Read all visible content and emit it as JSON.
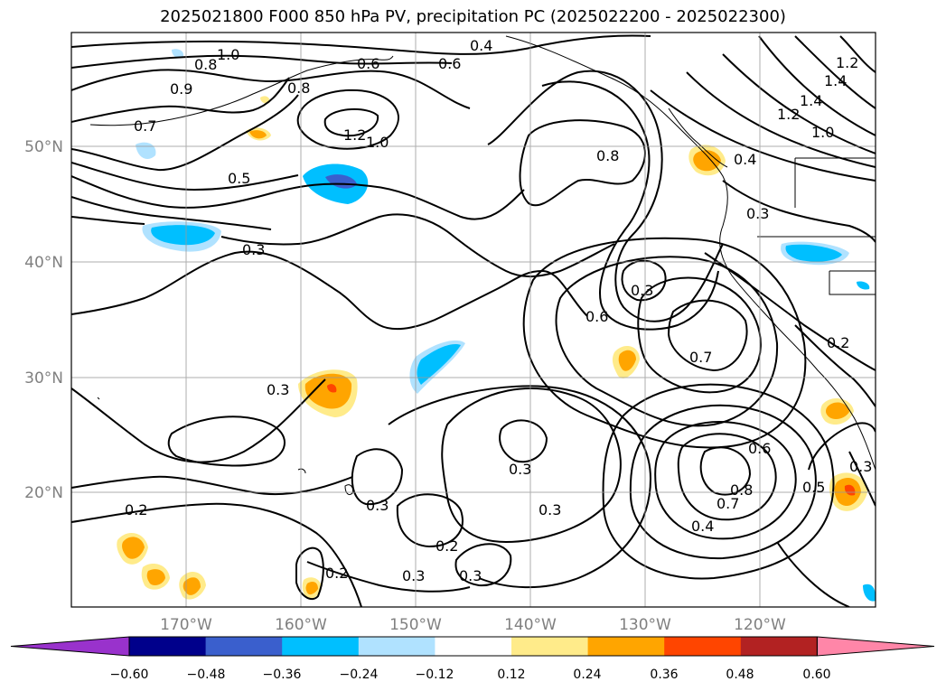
{
  "title": "2025021800 F000 850 hPa PV, precipitation PC (2025022200 - 2025022300)",
  "map": {
    "lon_labels": [
      "170°W",
      "160°W",
      "150°W",
      "140°W",
      "130°W",
      "120°W"
    ],
    "lat_labels": [
      "50°N",
      "40°N",
      "30°N",
      "20°N"
    ],
    "contour_labels": [
      "1.0",
      "0.8",
      "0.4",
      "0.6",
      "0.6",
      "0.8",
      "0.9",
      "0.7",
      "1.2",
      "1.0",
      "0.8",
      "0.5",
      "0.4",
      "1.4",
      "1.2",
      "1.0",
      "1.4",
      "1.2",
      "0.3",
      "0.3",
      "0.6",
      "0.7",
      "0.3",
      "0.3",
      "0.6",
      "0.8",
      "0.7",
      "0.4",
      "0.5",
      "0.2",
      "0.3",
      "0.2",
      "0.3",
      "0.3",
      "0.2",
      "0.2",
      "0.3",
      "0.3",
      "0.3"
    ]
  },
  "colorbar": {
    "tick_labels": [
      "−0.60",
      "−0.48",
      "−0.36",
      "−0.24",
      "−0.12",
      "0.12",
      "0.24",
      "0.36",
      "0.48",
      "0.60"
    ],
    "colors": [
      "#9932cc",
      "#00008b",
      "#3a5fcd",
      "#00bfff",
      "#b0e2ff",
      "#ffffff",
      "#ffeb8a",
      "#ffa500",
      "#ff4500",
      "#b22222",
      "#ff86a8"
    ]
  }
}
